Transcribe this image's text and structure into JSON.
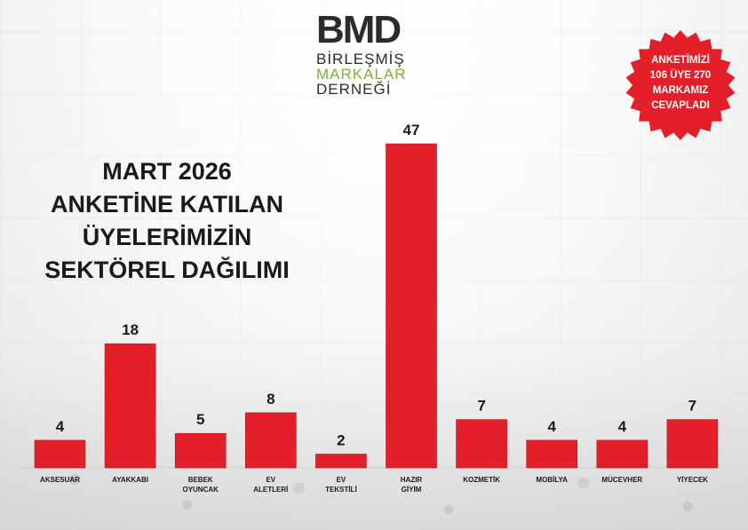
{
  "logo": {
    "main": "BMD",
    "line1": "BİRLEŞMİŞ",
    "line2": "MARKALAR",
    "line3": "DERNEĞİ"
  },
  "title_lines": [
    "MART 2026",
    "ANKETİNE KATILAN",
    "ÜYELERİMİZİN",
    "SEKTÖREL DAĞILIMI"
  ],
  "badge": {
    "lines": [
      "ANKETİMİZİ",
      "106 ÜYE 270",
      "MARKAMIZ",
      "CEVAPLADI"
    ],
    "color": "#e3202a"
  },
  "colors": {
    "bar": "#e3202a",
    "bar_stroke": "#b01419",
    "text": "#1a1a1a"
  },
  "chart_data": {
    "type": "bar",
    "title": "MART 2026 ANKETİNE KATILAN ÜYELERİMİZİN SEKTÖREL DAĞILIMI",
    "categories": [
      [
        "AKSESUAR"
      ],
      [
        "AYAKKABI"
      ],
      [
        "BEBEK",
        "OYUNCAK"
      ],
      [
        "EV",
        "ALETLERİ"
      ],
      [
        "EV",
        "TEKSTİLİ"
      ],
      [
        "HAZIR",
        "GİYİM"
      ],
      [
        "KOZMETİK"
      ],
      [
        "MOBİLYA"
      ],
      [
        "MÜCEVHER"
      ],
      [
        "YİYECEK"
      ]
    ],
    "values": [
      4,
      18,
      5,
      8,
      2,
      47,
      7,
      4,
      4,
      7
    ],
    "ylim": [
      0,
      47
    ],
    "grid": false,
    "legend": "none"
  }
}
